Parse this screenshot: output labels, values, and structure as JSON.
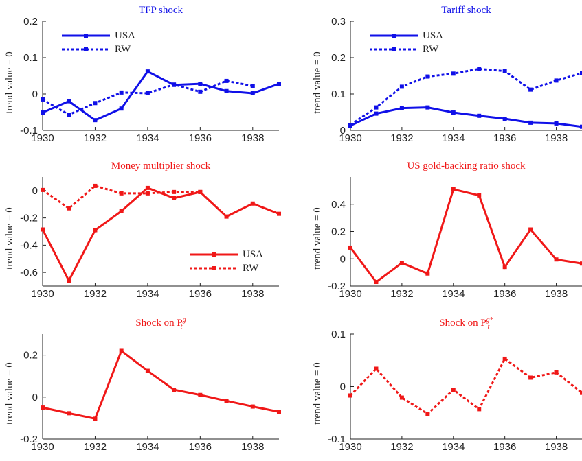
{
  "chart_data": [
    {
      "type": "line",
      "title": "TFP shock",
      "title_color": "#1010e8",
      "ylabel": "trend value = 0",
      "x": [
        1930,
        1931,
        1932,
        1933,
        1934,
        1935,
        1936,
        1937,
        1938,
        1939
      ],
      "xlim": [
        1930,
        1939
      ],
      "xticks": [
        1930,
        1932,
        1934,
        1936,
        1938
      ],
      "ylim": [
        -0.1,
        0.2
      ],
      "yticks": [
        -0.1,
        0,
        0.1,
        0.2
      ],
      "legend": "upper left",
      "series": [
        {
          "name": "USA",
          "color": "#1010e8",
          "style": "solid",
          "values": [
            -0.051,
            -0.02,
            -0.072,
            -0.04,
            0.062,
            0.025,
            0.028,
            0.008,
            0.002,
            0.028
          ]
        },
        {
          "name": "RW",
          "color": "#1010e8",
          "style": "dotted",
          "values": [
            -0.015,
            -0.057,
            -0.025,
            0.004,
            0.002,
            0.026,
            0.006,
            0.036,
            0.022,
            null
          ]
        }
      ]
    },
    {
      "type": "line",
      "title": "Tariff shock",
      "title_color": "#1010e8",
      "ylabel": "trend value = 0",
      "x": [
        1930,
        1931,
        1932,
        1933,
        1934,
        1935,
        1936,
        1937,
        1938,
        1939
      ],
      "xlim": [
        1930,
        1939
      ],
      "xticks": [
        1930,
        1932,
        1934,
        1936,
        1938
      ],
      "ylim": [
        0,
        0.3
      ],
      "yticks": [
        0,
        0.1,
        0.2,
        0.3
      ],
      "legend": "upper left",
      "series": [
        {
          "name": "USA",
          "color": "#1010e8",
          "style": "solid",
          "values": [
            0.013,
            0.046,
            0.061,
            0.063,
            0.049,
            0.04,
            0.032,
            0.021,
            0.019,
            0.01
          ]
        },
        {
          "name": "RW",
          "color": "#1010e8",
          "style": "dotted",
          "values": [
            0.015,
            0.063,
            0.12,
            0.148,
            0.156,
            0.169,
            0.163,
            0.112,
            0.137,
            0.158
          ]
        }
      ]
    },
    {
      "type": "line",
      "title": "Money multiplier shock",
      "title_color": "#f01818",
      "ylabel": "trend value = 0",
      "x": [
        1930,
        1931,
        1932,
        1933,
        1934,
        1935,
        1936,
        1937,
        1938,
        1939
      ],
      "xlim": [
        1930,
        1939
      ],
      "xticks": [
        1930,
        1932,
        1934,
        1936,
        1938
      ],
      "ylim": [
        -0.7,
        0.1
      ],
      "yticks": [
        -0.6,
        -0.4,
        -0.2,
        0
      ],
      "legend": "lower right",
      "series": [
        {
          "name": "USA",
          "color": "#f01818",
          "style": "solid",
          "values": [
            -0.285,
            -0.66,
            -0.29,
            -0.15,
            0.02,
            -0.055,
            -0.01,
            -0.19,
            -0.095,
            -0.17
          ]
        },
        {
          "name": "RW",
          "color": "#f01818",
          "style": "dotted",
          "values": [
            0.005,
            -0.13,
            0.035,
            -0.02,
            -0.02,
            -0.01,
            -0.01,
            null,
            null,
            null
          ]
        }
      ]
    },
    {
      "type": "line",
      "title": "US gold-backing ratio shock",
      "title_color": "#f01818",
      "ylabel": "trend value = 0",
      "x": [
        1930,
        1931,
        1932,
        1933,
        1934,
        1935,
        1936,
        1937,
        1938,
        1939
      ],
      "xlim": [
        1930,
        1939
      ],
      "xticks": [
        1930,
        1932,
        1934,
        1936,
        1938
      ],
      "ylim": [
        -0.2,
        0.6
      ],
      "yticks": [
        -0.2,
        0,
        0.2,
        0.4
      ],
      "series": [
        {
          "color": "#f01818",
          "style": "solid",
          "values": [
            0.082,
            -0.17,
            -0.03,
            -0.108,
            0.51,
            0.465,
            -0.06,
            0.215,
            -0.005,
            -0.035
          ]
        }
      ]
    },
    {
      "type": "line",
      "title": "Shock on P",
      "title_sub": "t",
      "title_sup": "g",
      "title_color": "#f01818",
      "ylabel": "trend value = 0",
      "x": [
        1930,
        1931,
        1932,
        1933,
        1934,
        1935,
        1936,
        1937,
        1938,
        1939
      ],
      "xlim": [
        1930,
        1939
      ],
      "xticks": [
        1930,
        1932,
        1934,
        1936,
        1938
      ],
      "ylim": [
        -0.2,
        0.3
      ],
      "yticks": [
        -0.2,
        0,
        0.2
      ],
      "series": [
        {
          "color": "#f01818",
          "style": "solid",
          "values": [
            -0.05,
            -0.077,
            -0.103,
            0.22,
            0.125,
            0.035,
            0.01,
            -0.018,
            -0.045,
            -0.07
          ]
        }
      ]
    },
    {
      "type": "line",
      "title": "Shock on P",
      "title_sub": "t",
      "title_sup": "g*",
      "title_color": "#f01818",
      "ylabel": "trend value = 0",
      "x": [
        1930,
        1931,
        1932,
        1933,
        1934,
        1935,
        1936,
        1937,
        1938,
        1939
      ],
      "xlim": [
        1930,
        1939
      ],
      "xticks": [
        1930,
        1932,
        1934,
        1936,
        1938
      ],
      "ylim": [
        -0.1,
        0.1
      ],
      "yticks": [
        -0.1,
        0,
        0.1
      ],
      "series": [
        {
          "color": "#f01818",
          "style": "dotted",
          "values": [
            -0.017,
            0.034,
            -0.021,
            -0.052,
            -0.006,
            -0.043,
            0.053,
            0.017,
            0.027,
            -0.012
          ]
        }
      ]
    }
  ]
}
